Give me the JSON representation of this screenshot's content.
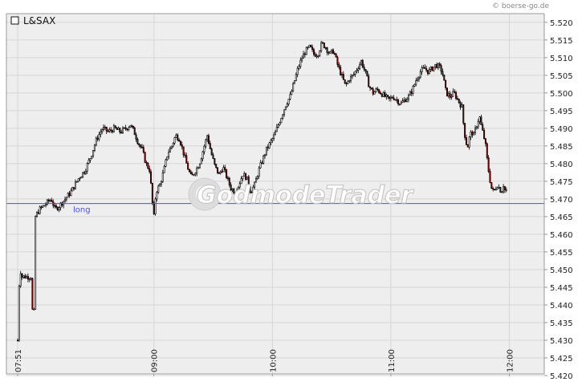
{
  "header": {
    "symbol": "L&SAX",
    "credit": "© boerse-go.de"
  },
  "watermark": "GodmodeTrader",
  "colors": {
    "up_candle": "#ffffff",
    "down_candle": "#8b0000",
    "wick": "#000000",
    "reference_line": "#4a4aff",
    "grid": "#d6d6d6",
    "plot_background": "#eeeeee"
  },
  "chart_data": {
    "type": "candlestick",
    "title": "L&SAX",
    "xlabel": "",
    "ylabel": "",
    "ylim": [
      5.42,
      5.522
    ],
    "yticks": [
      "5.420",
      "5.425",
      "5.430",
      "5.435",
      "5.440",
      "5.445",
      "5.450",
      "5.455",
      "5.460",
      "5.465",
      "5.470",
      "5.475",
      "5.480",
      "5.485",
      "5.490",
      "5.495",
      "5.500",
      "5.505",
      "5.510",
      "5.515",
      "5.520"
    ],
    "xticks": [
      {
        "label": "07:51",
        "minutes": 471
      },
      {
        "label": "09:00",
        "minutes": 540
      },
      {
        "label": "10:00",
        "minutes": 600
      },
      {
        "label": "11:00",
        "minutes": 660
      },
      {
        "label": "12:00",
        "minutes": 720
      }
    ],
    "x_range_minutes": [
      471,
      745
    ],
    "reference_line": {
      "label": "long",
      "value": 5.4687
    },
    "grid": true,
    "close_path": [
      [
        471,
        5.43
      ],
      [
        472,
        5.451
      ],
      [
        473,
        5.448
      ],
      [
        474,
        5.448
      ],
      [
        476,
        5.448
      ],
      [
        478,
        5.448
      ],
      [
        479,
        5.429
      ],
      [
        480,
        5.465
      ],
      [
        482,
        5.467
      ],
      [
        484,
        5.468
      ],
      [
        486,
        5.469
      ],
      [
        488,
        5.47
      ],
      [
        490,
        5.467
      ],
      [
        492,
        5.468
      ],
      [
        495,
        5.47
      ],
      [
        498,
        5.472
      ],
      [
        502,
        5.476
      ],
      [
        505,
        5.478
      ],
      [
        508,
        5.482
      ],
      [
        511,
        5.487
      ],
      [
        514,
        5.49
      ],
      [
        517,
        5.489
      ],
      [
        520,
        5.49
      ],
      [
        523,
        5.489
      ],
      [
        526,
        5.49
      ],
      [
        528,
        5.491
      ],
      [
        530,
        5.489
      ],
      [
        532,
        5.486
      ],
      [
        534,
        5.484
      ],
      [
        536,
        5.48
      ],
      [
        538,
        5.478
      ],
      [
        539,
        5.47
      ],
      [
        540,
        5.465
      ],
      [
        541,
        5.472
      ],
      [
        543,
        5.474
      ],
      [
        545,
        5.478
      ],
      [
        547,
        5.483
      ],
      [
        549,
        5.485
      ],
      [
        551,
        5.488
      ],
      [
        553,
        5.487
      ],
      [
        555,
        5.483
      ],
      [
        557,
        5.479
      ],
      [
        559,
        5.476
      ],
      [
        561,
        5.478
      ],
      [
        563,
        5.48
      ],
      [
        565,
        5.484
      ],
      [
        567,
        5.488
      ],
      [
        569,
        5.483
      ],
      [
        571,
        5.479
      ],
      [
        573,
        5.477
      ],
      [
        575,
        5.479
      ],
      [
        577,
        5.476
      ],
      [
        579,
        5.473
      ],
      [
        581,
        5.472
      ],
      [
        583,
        5.474
      ],
      [
        585,
        5.477
      ],
      [
        587,
        5.476
      ],
      [
        589,
        5.472
      ],
      [
        591,
        5.474
      ],
      [
        593,
        5.478
      ],
      [
        595,
        5.481
      ],
      [
        597,
        5.484
      ],
      [
        599,
        5.486
      ],
      [
        601,
        5.488
      ],
      [
        603,
        5.491
      ],
      [
        605,
        5.494
      ],
      [
        607,
        5.497
      ],
      [
        609,
        5.499
      ],
      [
        611,
        5.503
      ],
      [
        613,
        5.507
      ],
      [
        615,
        5.51
      ],
      [
        617,
        5.512
      ],
      [
        619,
        5.513
      ],
      [
        621,
        5.511
      ],
      [
        623,
        5.511
      ],
      [
        625,
        5.514
      ],
      [
        627,
        5.513
      ],
      [
        629,
        5.511
      ],
      [
        631,
        5.512
      ],
      [
        633,
        5.508
      ],
      [
        635,
        5.505
      ],
      [
        637,
        5.502
      ],
      [
        639,
        5.504
      ],
      [
        641,
        5.505
      ],
      [
        643,
        5.507
      ],
      [
        645,
        5.509
      ],
      [
        647,
        5.506
      ],
      [
        649,
        5.502
      ],
      [
        651,
        5.5
      ],
      [
        653,
        5.501
      ],
      [
        655,
        5.5
      ],
      [
        657,
        5.499
      ],
      [
        659,
        5.498
      ],
      [
        661,
        5.499
      ],
      [
        663,
        5.498
      ],
      [
        665,
        5.497
      ],
      [
        667,
        5.498
      ],
      [
        669,
        5.499
      ],
      [
        671,
        5.501
      ],
      [
        673,
        5.504
      ],
      [
        675,
        5.506
      ],
      [
        677,
        5.507
      ],
      [
        679,
        5.506
      ],
      [
        681,
        5.507
      ],
      [
        683,
        5.508
      ],
      [
        685,
        5.507
      ],
      [
        686,
        5.506
      ],
      [
        688,
        5.5
      ],
      [
        690,
        5.499
      ],
      [
        692,
        5.5
      ],
      [
        694,
        5.498
      ],
      [
        696,
        5.496
      ],
      [
        697,
        5.49
      ],
      [
        698,
        5.486
      ],
      [
        699,
        5.485
      ],
      [
        700,
        5.488
      ],
      [
        701,
        5.489
      ],
      [
        702,
        5.488
      ],
      [
        703,
        5.49
      ],
      [
        704,
        5.492
      ],
      [
        705,
        5.493
      ],
      [
        706,
        5.49
      ],
      [
        707,
        5.488
      ],
      [
        708,
        5.485
      ],
      [
        709,
        5.48
      ],
      [
        710,
        5.476
      ],
      [
        711,
        5.473
      ],
      [
        712,
        5.472
      ],
      [
        713,
        5.473
      ],
      [
        714,
        5.474
      ],
      [
        715,
        5.473
      ],
      [
        716,
        5.472
      ],
      [
        717,
        5.474
      ],
      [
        718,
        5.472
      ],
      [
        719,
        5.473
      ]
    ]
  }
}
